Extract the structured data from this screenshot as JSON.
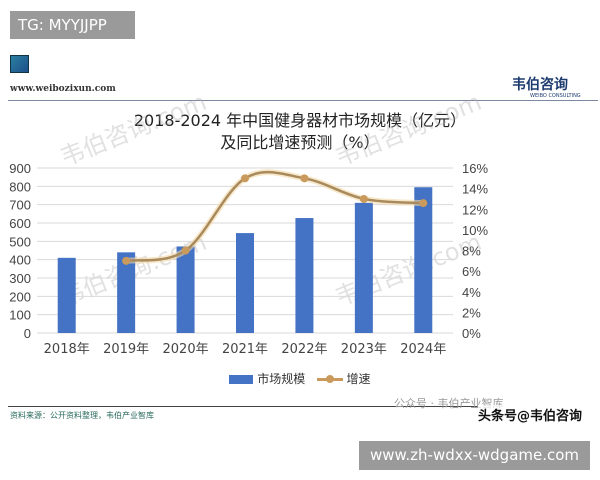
{
  "header": {
    "tg_label": "TG: MYYJJPP",
    "site": "www.weibozixun.com",
    "logo": "韦伯咨询",
    "logo_sub": "WEIBO CONSULTING"
  },
  "watermark_text": "韦伯咨询.com",
  "chart_data": {
    "type": "bar+line",
    "title": "2018-2024 年中国健身器材市场规模（亿元）",
    "subtitle": "及同比增速预测（%）",
    "categories": [
      "2018年",
      "2019年",
      "2020年",
      "2021年",
      "2022年",
      "2023年",
      "2024年"
    ],
    "series": [
      {
        "name": "市场规模",
        "type": "bar",
        "axis": "left",
        "color": "#4472c4",
        "values": [
          410,
          440,
          472,
          545,
          627,
          710,
          795
        ]
      },
      {
        "name": "增速",
        "type": "line",
        "axis": "right",
        "color": "#c99a5b",
        "values": [
          null,
          7,
          8,
          15,
          15,
          13,
          12.6
        ]
      }
    ],
    "y_left": {
      "lim": [
        0,
        900
      ],
      "ticks": [
        "0",
        "100",
        "200",
        "300",
        "400",
        "500",
        "600",
        "700",
        "800",
        "900"
      ]
    },
    "y_right": {
      "lim": [
        0,
        16
      ],
      "ticks": [
        "0%",
        "2%",
        "4%",
        "6%",
        "8%",
        "10%",
        "12%",
        "14%",
        "16%"
      ]
    },
    "grid": true,
    "legend": "bottom"
  },
  "footer": {
    "source": "资料来源：公开资料整理，韦伯产业智库",
    "wechat": "公众号 · 韦伯产业智库",
    "toutiao": "头条号@韦伯咨询",
    "watermark_url": "www.zh-wdxx-wdgame.com"
  }
}
